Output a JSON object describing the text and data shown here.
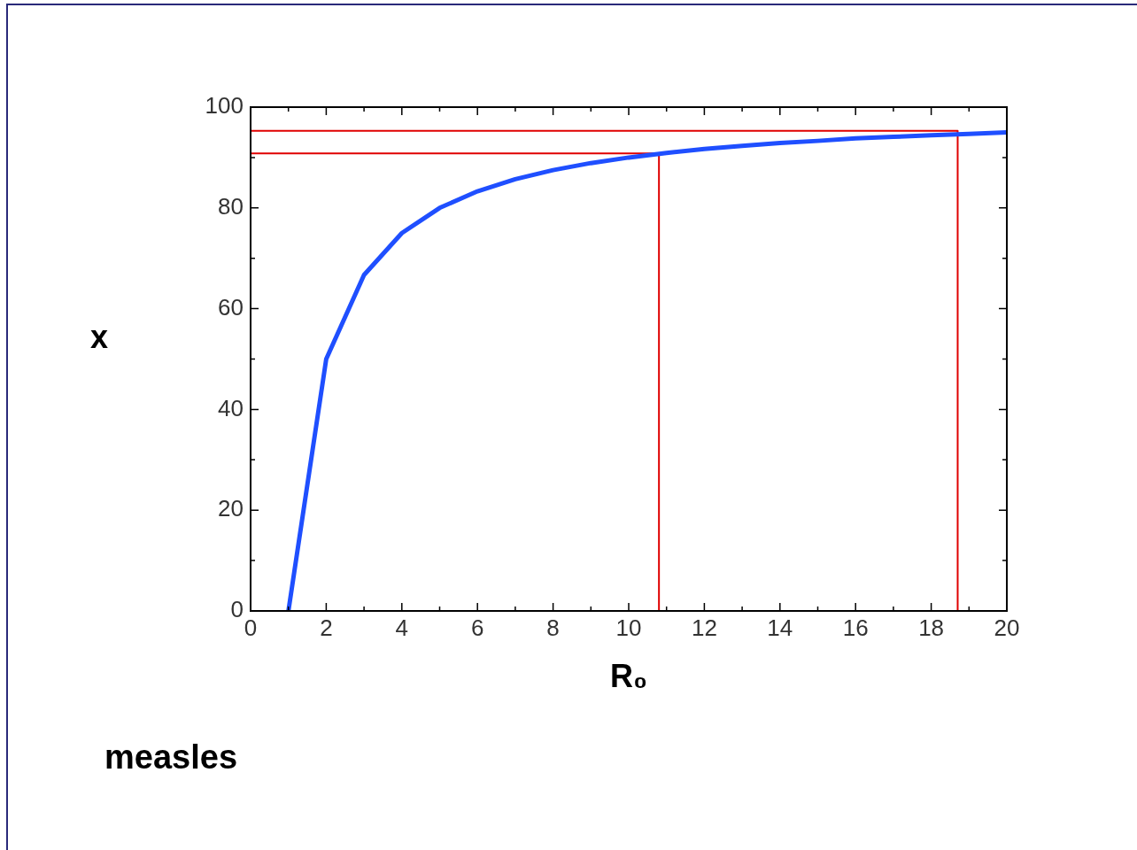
{
  "chart_data": {
    "type": "line",
    "xlabel": "R₀",
    "ylabel": "x",
    "marker": "none",
    "line_style": "solid",
    "xlim": [
      0,
      20
    ],
    "ylim": [
      0,
      100
    ],
    "xticks": [
      0,
      {
        "value": 1,
        "label": null
      },
      2,
      {
        "value": 3,
        "label": null
      },
      4,
      {
        "value": 5,
        "label": null
      },
      6,
      {
        "value": 7,
        "label": null
      },
      8,
      {
        "value": 9,
        "label": null
      },
      10,
      {
        "value": 11,
        "label": null
      },
      12,
      {
        "value": 13,
        "label": null
      },
      14,
      {
        "value": 15,
        "label": null
      },
      16,
      {
        "value": 17,
        "label": null
      },
      18,
      {
        "value": 19,
        "label": null
      },
      20
    ],
    "yticks": [
      0,
      {
        "value": 10,
        "label": null
      },
      20,
      {
        "value": 30,
        "label": null
      },
      40,
      {
        "value": 50,
        "label": null
      },
      60,
      {
        "value": 70,
        "label": null
      },
      80,
      {
        "value": 90,
        "label": null
      },
      100
    ],
    "annotations": [
      "measles"
    ],
    "series": [
      {
        "color": "#1f4fff",
        "x": [
          1,
          2,
          3,
          4,
          5,
          6,
          7,
          8,
          9,
          10,
          11,
          12,
          13,
          14,
          15,
          16,
          17,
          18,
          19,
          20
        ],
        "values": [
          0,
          50,
          66.7,
          75,
          80,
          83.3,
          85.7,
          87.5,
          88.9,
          90,
          90.9,
          91.7,
          92.3,
          92.9,
          93.3,
          93.8,
          94.1,
          94.4,
          94.7,
          95
        ]
      },
      {
        "color": "#e00000",
        "x": [
          0,
          10.8,
          10.8
        ],
        "values": [
          90.8,
          90.8,
          0
        ]
      },
      {
        "color": "#e00000",
        "x": [
          0,
          18.7,
          18.7
        ],
        "values": [
          95.3,
          95.3,
          0
        ]
      }
    ]
  }
}
